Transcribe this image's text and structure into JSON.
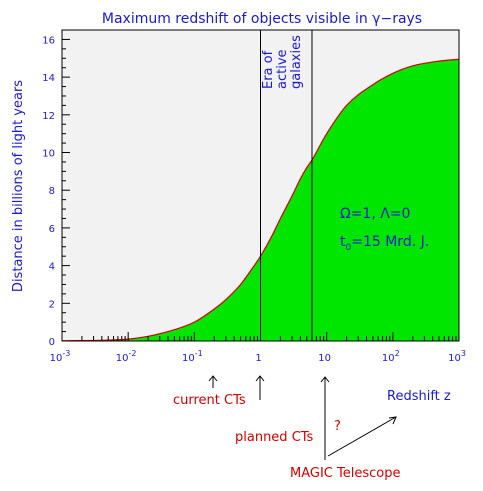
{
  "chart_data": {
    "type": "area",
    "title": "Maximum redshift of objects visible in γ−rays",
    "ylabel": "Distance in billions of light years",
    "xlabel": "Redshift z",
    "xscale": "log",
    "xlim": [
      0.001,
      1000
    ],
    "ylim": [
      0,
      16.5
    ],
    "x_ticks": [
      {
        "value": 0.001,
        "base": "10",
        "exp": "-3"
      },
      {
        "value": 0.01,
        "base": "10",
        "exp": "-2"
      },
      {
        "value": 0.1,
        "base": "10",
        "exp": "-1"
      },
      {
        "value": 1,
        "base": "1",
        "exp": ""
      },
      {
        "value": 10,
        "base": "10",
        "exp": ""
      },
      {
        "value": 100,
        "base": "10",
        "exp": "2"
      },
      {
        "value": 1000,
        "base": "10",
        "exp": "3"
      }
    ],
    "y_ticks": [
      "0",
      "2",
      "4",
      "6",
      "8",
      "10",
      "12",
      "14",
      "16"
    ],
    "series": [
      {
        "x": [
          0.001,
          0.005,
          0.01,
          0.02,
          0.05,
          0.1,
          0.2,
          0.3,
          0.5,
          0.7,
          1,
          1.5,
          2,
          3,
          4,
          5,
          6,
          8,
          10,
          20,
          50,
          100,
          200,
          500,
          1000
        ],
        "y": [
          0.01,
          0.05,
          0.1,
          0.25,
          0.6,
          1.0,
          1.7,
          2.2,
          3.0,
          3.7,
          4.5,
          5.6,
          6.5,
          7.7,
          8.6,
          9.2,
          9.6,
          10.4,
          11.0,
          12.5,
          13.6,
          14.2,
          14.6,
          14.85,
          14.95
        ]
      }
    ],
    "vertical_markers": [
      {
        "x": 1,
        "label": "planned CTs"
      },
      {
        "x": 6,
        "label": ""
      }
    ],
    "annotations": {
      "era_line1": "Era of",
      "era_line2": "active",
      "era_line3": "galaxies",
      "omega": "Ω=1, Λ=0",
      "t0_main": "t",
      "t0_sub": "0",
      "t0_rest": "=15 Mrd. J."
    },
    "below_axis": {
      "current_cts": "current CTs",
      "planned_cts": "planned CTs",
      "question": "?",
      "magic": "MAGIC Telescope",
      "redshift_label": "Redshift z"
    },
    "colors": {
      "fill": "#00e600",
      "curve": "#d40000",
      "plot_bg": "#f2f2f2",
      "label_blue": "#1a1acd",
      "label_red": "#d40000"
    },
    "grid": false
  }
}
